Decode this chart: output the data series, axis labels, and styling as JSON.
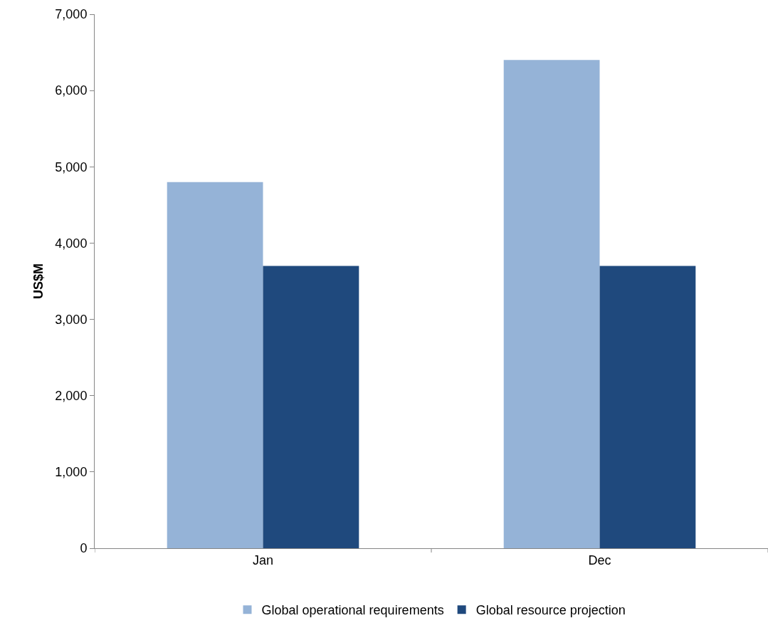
{
  "chart_data": {
    "type": "bar",
    "ylabel": "US$M",
    "categories": [
      "Jan",
      "Dec"
    ],
    "series": [
      {
        "name": "Global operational requirements",
        "color": "#95b3d7",
        "values": [
          4800,
          6400
        ]
      },
      {
        "name": "Global resource projection",
        "color": "#1f497d",
        "values": [
          3700,
          3700
        ]
      }
    ],
    "ylim": [
      0,
      7000
    ],
    "yticks": [
      {
        "value": 0,
        "label": "0"
      },
      {
        "value": 1000,
        "label": "1,000"
      },
      {
        "value": 2000,
        "label": "2,000"
      },
      {
        "value": 3000,
        "label": "3,000"
      },
      {
        "value": 4000,
        "label": "4,000"
      },
      {
        "value": 5000,
        "label": "5,000"
      },
      {
        "value": 6000,
        "label": "6,000"
      },
      {
        "value": 7000,
        "label": "7,000"
      }
    ],
    "grid": false,
    "legend": "bottom"
  }
}
